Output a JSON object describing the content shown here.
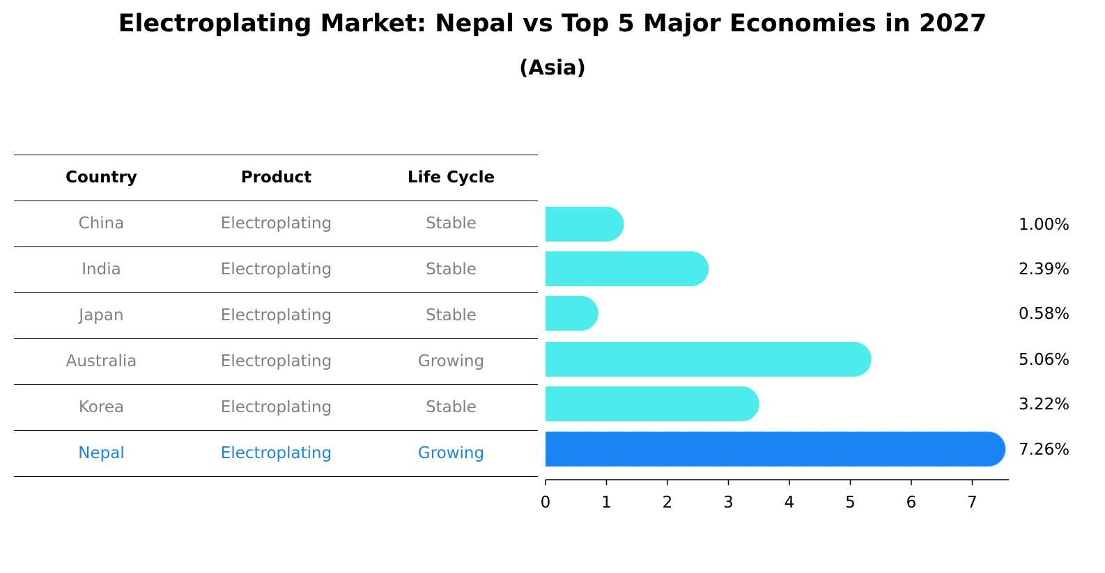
{
  "title": "Electroplating Market: Nepal vs Top 5 Major Economies in 2027",
  "subtitle": "(Asia)",
  "table": {
    "headers": [
      "Country",
      "Product",
      "Life Cycle"
    ],
    "rows": [
      [
        "China",
        "Electroplating",
        "Stable"
      ],
      [
        "India",
        "Electroplating",
        "Stable"
      ],
      [
        "Japan",
        "Electroplating",
        "Stable"
      ],
      [
        "Australia",
        "Electroplating",
        "Growing"
      ],
      [
        "Korea",
        "Electroplating",
        "Stable"
      ],
      [
        "Nepal",
        "Electroplating",
        "Growing"
      ]
    ],
    "highlight_row": "Nepal"
  },
  "colors": {
    "bar": "#4cecec",
    "highlight": "#1a85e0",
    "highlight_bar": "#1985f5",
    "muted_text": "#808080"
  },
  "chart_data": {
    "type": "bar",
    "orientation": "horizontal",
    "title": "Electroplating Market: Nepal vs Top 5 Major Economies in 2027",
    "subtitle": "(Asia)",
    "categories": [
      "China",
      "India",
      "Japan",
      "Australia",
      "Korea",
      "Nepal"
    ],
    "values": [
      1.0,
      2.39,
      0.58,
      5.06,
      3.22,
      7.26
    ],
    "value_labels": [
      "1.00%",
      "2.39%",
      "0.58%",
      "5.06%",
      "3.22%",
      "7.26%"
    ],
    "highlight": "Nepal",
    "xlim": [
      0,
      7.6
    ],
    "xticks": [
      0,
      1,
      2,
      3,
      4,
      5,
      6,
      7
    ],
    "xlabel": "",
    "ylabel": "",
    "grid": false
  }
}
